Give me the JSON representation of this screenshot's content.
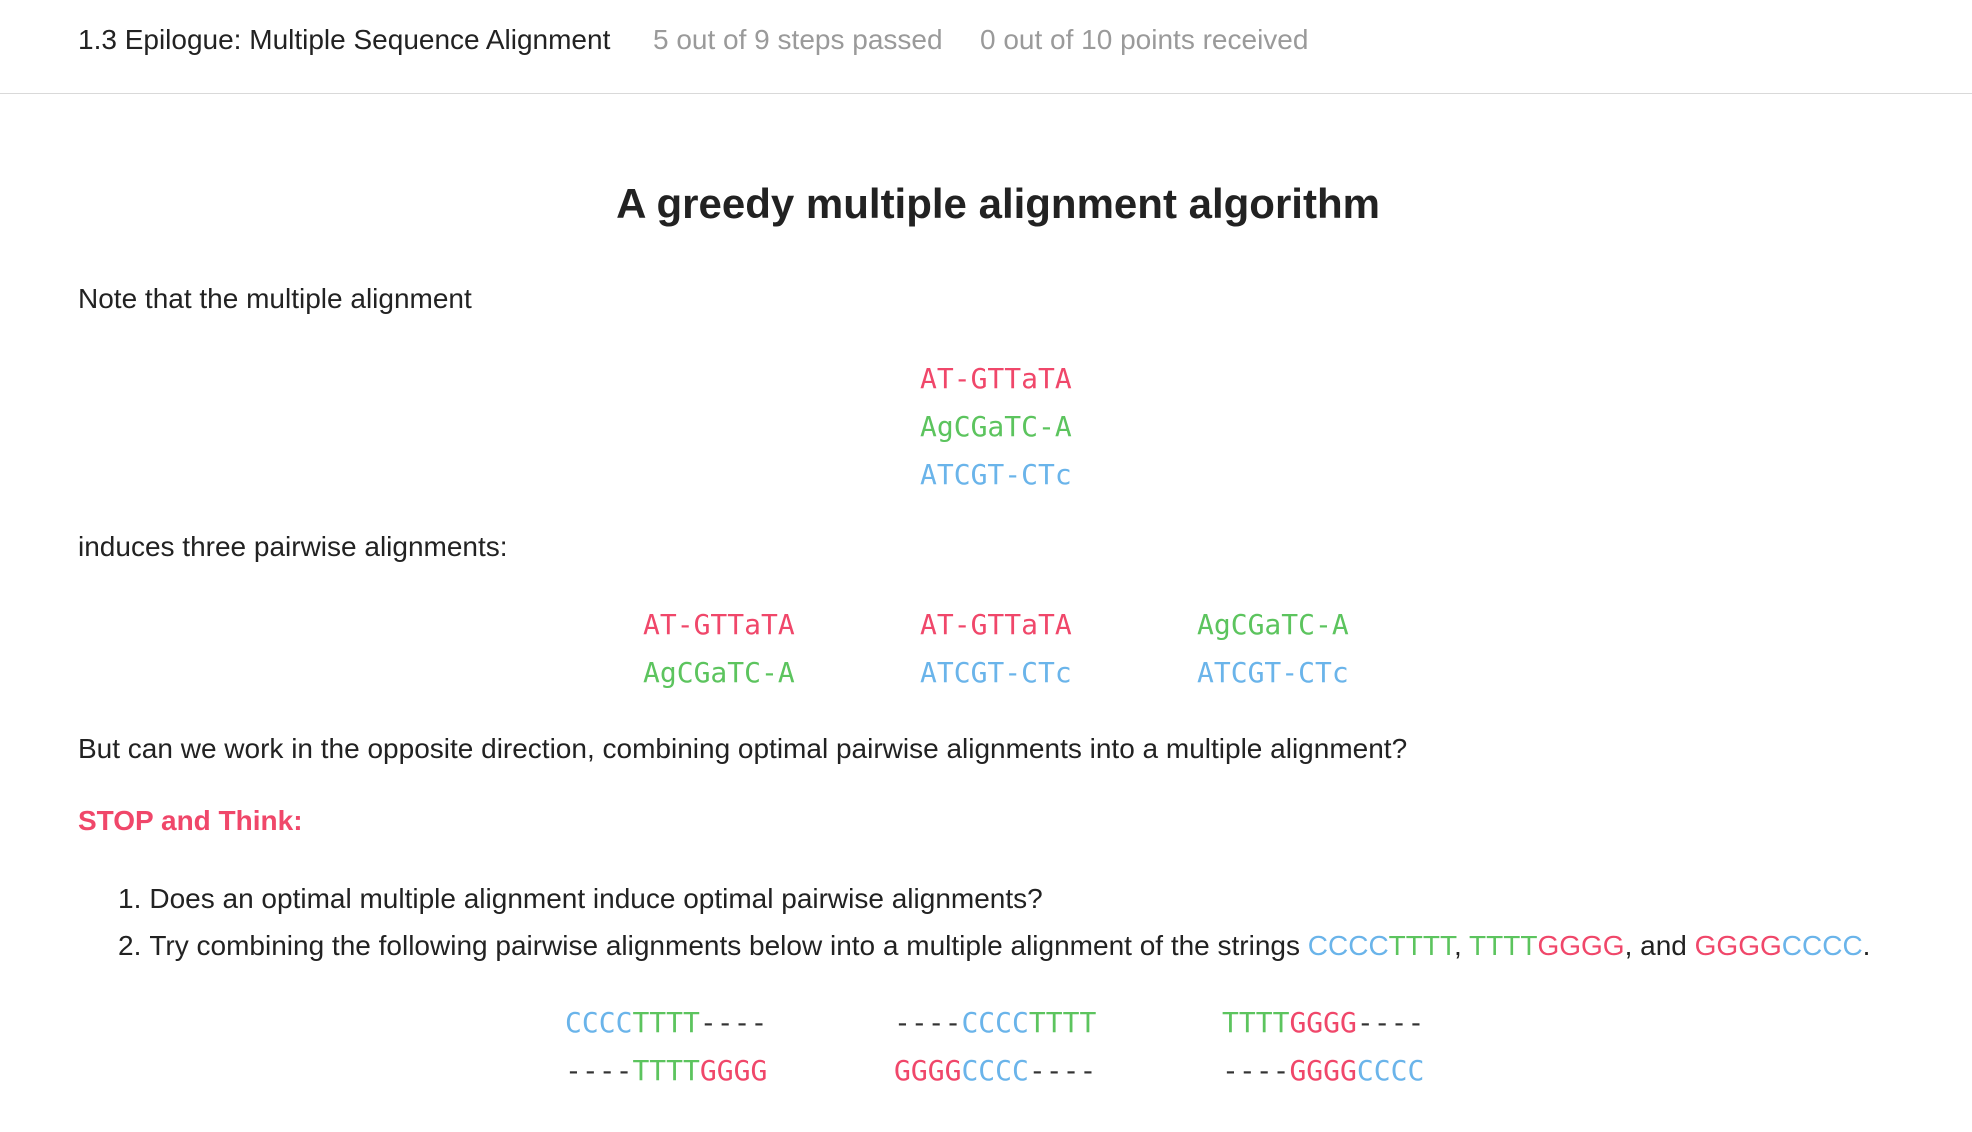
{
  "header": {
    "course_title": "1.3 Epilogue: Multiple Sequence Alignment",
    "steps_status": "5 out of 9 steps passed",
    "points_status": "0 out of 10 points  received"
  },
  "article": {
    "title": "A greedy multiple alignment algorithm",
    "p1": "Note that the multiple alignment",
    "multiple_alignment": [
      "AT-GTTaTA",
      "AgCGaTC-A",
      "ATCGT-CTc"
    ],
    "p2": "induces three pairwise alignments:",
    "pairwise": [
      [
        "AT-GTTaTA",
        "AgCGaTC-A"
      ],
      [
        "AT-GTTaTA",
        "ATCGT-CTc"
      ],
      [
        "AgCGaTC-A",
        "ATCGT-CTc"
      ]
    ],
    "p3": "But can we work in the opposite direction, combining optimal pairwise alignments into a multiple alignment?",
    "stop_label": "STOP and Think:",
    "list": {
      "n1": "1.",
      "item1": "Does an optimal multiple alignment induce optimal pairwise alignments?",
      "n2": "2.",
      "item2_prefix": "Try combining the following pairwise alignments below into a multiple alignment of the strings ",
      "s1_a": "CCCC",
      "s1_b": "TTTT",
      "comma1": ", ",
      "s2_a": "TTTT",
      "s2_b": "GGGG",
      "and_text": ", and ",
      "s3_a": "GGGG",
      "s3_b": "CCCC",
      "period": "."
    },
    "bottom_alignments": {
      "a1_r1": {
        "p1": "CCCC",
        "p2": "TTTT",
        "p3": "----"
      },
      "a1_r2": {
        "p1": "----",
        "p2": "TTTT",
        "p3": "GGGG"
      },
      "a2_r1": {
        "p1": "----",
        "p2": "CCCC",
        "p3": "TTTT"
      },
      "a2_r2": {
        "p1": "GGGG",
        "p2": "CCCC",
        "p3": "----"
      },
      "a3_r1": {
        "p1": "TTTT",
        "p2": "GGGG",
        "p3": "----"
      },
      "a3_r2": {
        "p1": "----",
        "p2": "GGGG",
        "p3": "CCCC"
      }
    }
  },
  "colors": {
    "red": "#f0476a",
    "green": "#5cc45e",
    "blue": "#6ab4ea"
  }
}
